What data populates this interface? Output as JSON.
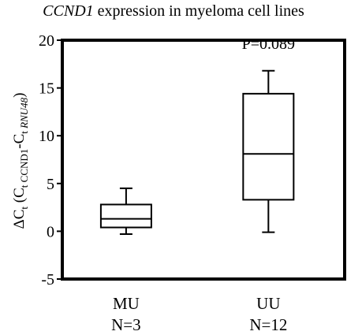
{
  "chart_data": {
    "type": "box",
    "title_gene": "CCND1",
    "title_rest": " expression in myeloma cell lines",
    "ylabel": {
      "delta": "ΔC",
      "t1": "t",
      "open": " (C",
      "t2": "t CCND1",
      "dash": "-C",
      "t3": "t ",
      "ref": "RNU48",
      "close": ")"
    },
    "ylim": [
      -5,
      20
    ],
    "yticks": [
      -5,
      0,
      5,
      10,
      15,
      20
    ],
    "grid": false,
    "groups": [
      {
        "name": "MU",
        "n_label": "N=3",
        "min": -0.3,
        "q1": 0.4,
        "median": 1.3,
        "q3": 2.8,
        "max": 4.5
      },
      {
        "name": "UU",
        "n_label": "N=12",
        "min": -0.1,
        "q1": 3.3,
        "median": 8.1,
        "q3": 14.4,
        "max": 16.8
      }
    ],
    "annotation": "P=0.089"
  }
}
